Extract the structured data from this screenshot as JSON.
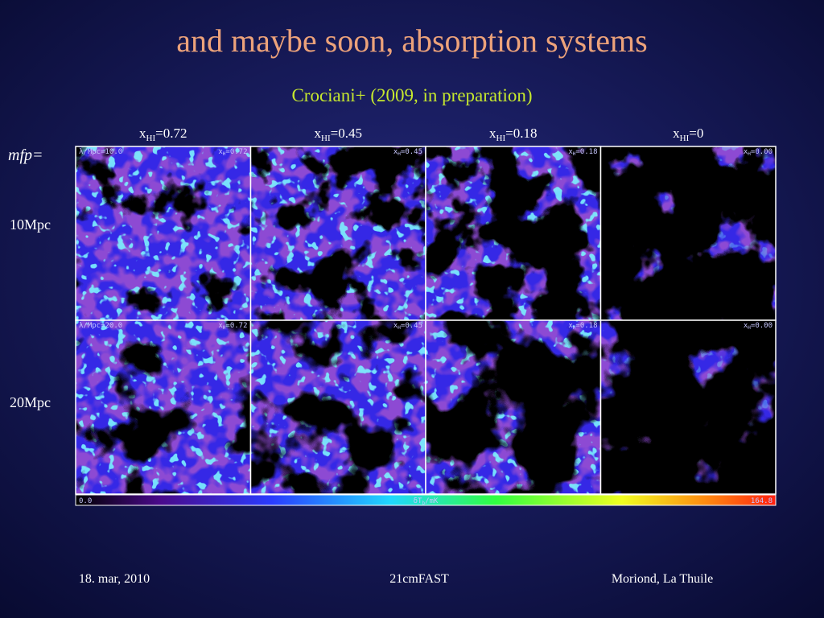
{
  "header": {
    "title": "and maybe soon, absorption systems",
    "subtitle": "Crociani+ (2009, in preparation)"
  },
  "columns": [
    {
      "var": "x",
      "sub": "HI",
      "value": "=0.72"
    },
    {
      "var": "x",
      "sub": "HI",
      "value": "=0.45"
    },
    {
      "var": "x",
      "sub": "HI",
      "value": "=0.18"
    },
    {
      "var": "x",
      "sub": "HI",
      "value": "=0"
    }
  ],
  "rows": {
    "heading": "mfp=",
    "labels": [
      "10Mpc",
      "20Mpc"
    ]
  },
  "panels": {
    "row_labels": [
      "λ/Mpc=10.0",
      "λ/Mpc=20.0"
    ],
    "column_labels": [
      {
        "var": "x",
        "sub": "H",
        "value": "=0.72"
      },
      {
        "var": "x",
        "sub": "H",
        "value": "=0.45"
      },
      {
        "var": "x",
        "sub": "H",
        "value": "=0.18"
      },
      {
        "var": "x",
        "sub": "H",
        "value": "=0.00"
      }
    ]
  },
  "colorbar": {
    "min": "0.0",
    "label": {
      "var": "δT",
      "sub": "b",
      "unit": "/mK"
    },
    "max": "164.8"
  },
  "footer": {
    "date": "18. mar, 2010",
    "center": "21cmFAST",
    "right": "Moriond, La Thuile"
  }
}
